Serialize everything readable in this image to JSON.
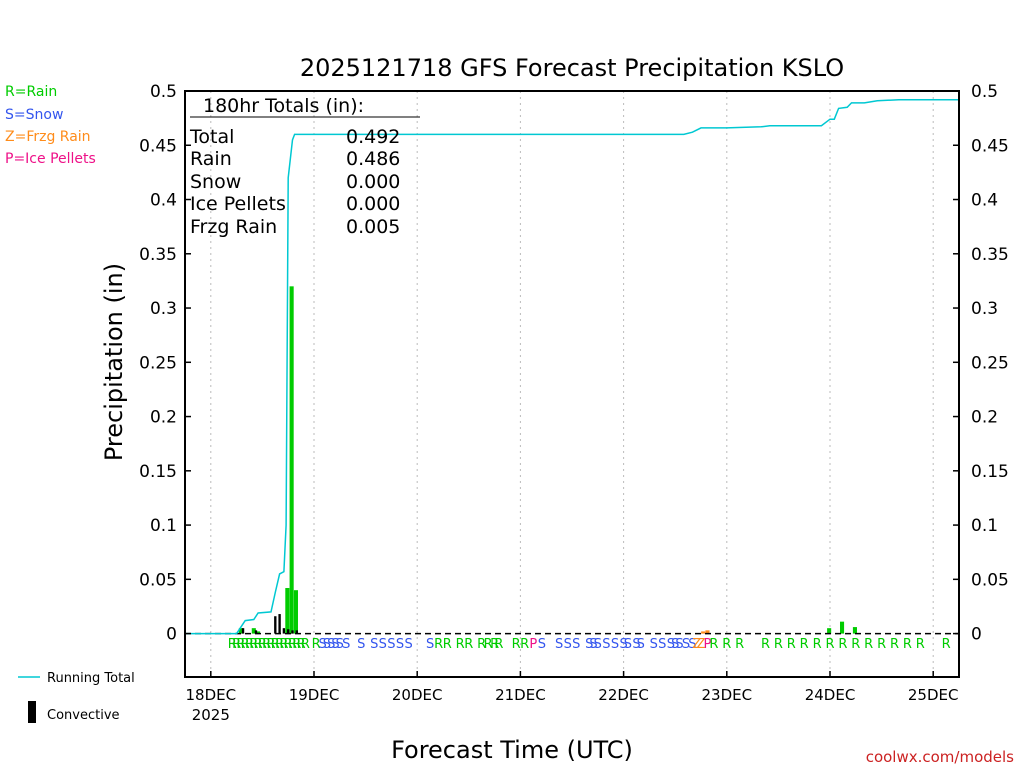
{
  "chart_data": {
    "type": "bar",
    "title": "2025121718 GFS Forecast Precipitation KSLO",
    "xlabel": "Forecast Time (UTC)",
    "ylabel": "Precipitation (in)",
    "ylim": [
      -0.04,
      0.5
    ],
    "y_ticks": [
      0,
      0.05,
      0.1,
      0.15,
      0.2,
      0.25,
      0.3,
      0.35,
      0.4,
      0.45,
      0.5
    ],
    "y_tick_labels": [
      "0",
      "0.05",
      "0.1",
      "0.15",
      "0.2",
      "0.25",
      "0.3",
      "0.35",
      "0.4",
      "0.45",
      "0.5"
    ],
    "x_unit": "hours since 18DEC 00Z",
    "xlim": [
      -6,
      174
    ],
    "x_ticks": [
      {
        "hour": 0,
        "label": "18DEC",
        "sub": "2025"
      },
      {
        "hour": 24,
        "label": "19DEC",
        "sub": ""
      },
      {
        "hour": 48,
        "label": "20DEC",
        "sub": ""
      },
      {
        "hour": 72,
        "label": "21DEC",
        "sub": ""
      },
      {
        "hour": 96,
        "label": "22DEC",
        "sub": ""
      },
      {
        "hour": 120,
        "label": "23DEC",
        "sub": ""
      },
      {
        "hour": 144,
        "label": "24DEC",
        "sub": ""
      },
      {
        "hour": 168,
        "label": "25DEC",
        "sub": ""
      }
    ],
    "legend_types": [
      {
        "code": "R",
        "text": "R=Rain",
        "color": "#00cc00"
      },
      {
        "code": "S",
        "text": "S=Snow",
        "color": "#3355ee"
      },
      {
        "code": "Z",
        "text": "Z=Frzg Rain",
        "color": "#ff8c1a"
      },
      {
        "code": "P",
        "text": "P=Ice Pellets",
        "color": "#ee1188"
      }
    ],
    "legend_lines": [
      {
        "text": "Running Total",
        "color": "#00c8d2"
      },
      {
        "text": "Convective",
        "color": "#000000"
      }
    ],
    "totals": {
      "header": "180hr Totals (in):",
      "rows": [
        {
          "label": "Total",
          "value": "0.492"
        },
        {
          "label": "Rain",
          "value": "0.486"
        },
        {
          "label": "Snow",
          "value": "0.000"
        },
        {
          "label": "Ice Pellets",
          "value": "0.000"
        },
        {
          "label": "Frzg Rain",
          "value": "0.005"
        }
      ]
    },
    "series": [
      {
        "name": "Precipitation (Rain)",
        "color": "#00cc00",
        "points": [
          [
            7,
            0.005
          ],
          [
            10,
            0.005
          ],
          [
            11,
            0.002
          ],
          [
            17.8,
            0.042
          ],
          [
            18.8,
            0.32
          ],
          [
            19.8,
            0.04
          ],
          [
            143.8,
            0.005
          ],
          [
            146.8,
            0.011
          ],
          [
            149.8,
            0.006
          ]
        ]
      },
      {
        "name": "Precipitation (Frzg Rain)",
        "color": "#ff8c1a",
        "points": [
          [
            114.5,
            0.002
          ],
          [
            115.5,
            0.003
          ]
        ]
      },
      {
        "name": "Convective",
        "color": "#000000",
        "points": [
          [
            7.5,
            0.005
          ],
          [
            10.5,
            0.003
          ],
          [
            15,
            0.016
          ],
          [
            16,
            0.018
          ],
          [
            17,
            0.005
          ],
          [
            18,
            0.004
          ],
          [
            19,
            0.003
          ],
          [
            20,
            0.003
          ]
        ]
      },
      {
        "name": "Running Total",
        "color": "#00c8d2",
        "type": "line",
        "points": [
          [
            -6,
            0
          ],
          [
            6,
            0
          ],
          [
            7,
            0.006
          ],
          [
            8,
            0.012
          ],
          [
            10,
            0.013
          ],
          [
            11,
            0.019
          ],
          [
            14,
            0.02
          ],
          [
            15,
            0.038
          ],
          [
            16,
            0.055
          ],
          [
            17,
            0.057
          ],
          [
            17.5,
            0.1
          ],
          [
            18,
            0.42
          ],
          [
            19,
            0.455
          ],
          [
            19.5,
            0.46
          ],
          [
            24,
            0.46
          ],
          [
            110,
            0.46
          ],
          [
            112,
            0.462
          ],
          [
            114,
            0.466
          ],
          [
            120,
            0.466
          ],
          [
            128,
            0.467
          ],
          [
            130,
            0.468
          ],
          [
            142,
            0.468
          ],
          [
            144,
            0.474
          ],
          [
            145,
            0.474
          ],
          [
            146,
            0.484
          ],
          [
            148,
            0.485
          ],
          [
            149,
            0.489
          ],
          [
            152,
            0.489
          ],
          [
            155,
            0.491
          ],
          [
            160,
            0.492
          ],
          [
            174,
            0.492
          ]
        ]
      }
    ],
    "type_markers": [
      {
        "hour": 5.0,
        "code": "R"
      },
      {
        "hour": 6.0,
        "code": "R"
      },
      {
        "hour": 7.0,
        "code": "R"
      },
      {
        "hour": 8.0,
        "code": "R"
      },
      {
        "hour": 9.0,
        "code": "R"
      },
      {
        "hour": 10.0,
        "code": "R"
      },
      {
        "hour": 11.0,
        "code": "R"
      },
      {
        "hour": 12.0,
        "code": "R"
      },
      {
        "hour": 13.0,
        "code": "R"
      },
      {
        "hour": 14.0,
        "code": "R"
      },
      {
        "hour": 15.0,
        "code": "R"
      },
      {
        "hour": 16.0,
        "code": "R"
      },
      {
        "hour": 17.0,
        "code": "R"
      },
      {
        "hour": 18.0,
        "code": "R"
      },
      {
        "hour": 19.0,
        "code": "R"
      },
      {
        "hour": 20.0,
        "code": "R"
      },
      {
        "hour": 21.0,
        "code": "R"
      },
      {
        "hour": 22.0,
        "code": "R"
      },
      {
        "hour": 24.5,
        "code": "R"
      },
      {
        "hour": 26.0,
        "code": "S"
      },
      {
        "hour": 27.0,
        "code": "S"
      },
      {
        "hour": 28.0,
        "code": "S"
      },
      {
        "hour": 29.0,
        "code": "S"
      },
      {
        "hour": 30.0,
        "code": "S"
      },
      {
        "hour": 31.5,
        "code": "S"
      },
      {
        "hour": 35.0,
        "code": "S"
      },
      {
        "hour": 38.0,
        "code": "S"
      },
      {
        "hour": 40.0,
        "code": "S"
      },
      {
        "hour": 42.0,
        "code": "S"
      },
      {
        "hour": 44.0,
        "code": "S"
      },
      {
        "hour": 46.0,
        "code": "S"
      },
      {
        "hour": 51.0,
        "code": "S"
      },
      {
        "hour": 53.0,
        "code": "R"
      },
      {
        "hour": 55.0,
        "code": "R"
      },
      {
        "hour": 58.0,
        "code": "R"
      },
      {
        "hour": 60.0,
        "code": "R"
      },
      {
        "hour": 63.0,
        "code": "R"
      },
      {
        "hour": 64.5,
        "code": "R"
      },
      {
        "hour": 66.0,
        "code": "R"
      },
      {
        "hour": 67.0,
        "code": "R"
      },
      {
        "hour": 71.0,
        "code": "R"
      },
      {
        "hour": 73.0,
        "code": "R"
      },
      {
        "hour": 75.0,
        "code": "P"
      },
      {
        "hour": 77.0,
        "code": "S"
      },
      {
        "hour": 81.0,
        "code": "S"
      },
      {
        "hour": 83.0,
        "code": "S"
      },
      {
        "hour": 85.0,
        "code": "S"
      },
      {
        "hour": 88.0,
        "code": "S"
      },
      {
        "hour": 89.0,
        "code": "S"
      },
      {
        "hour": 90.0,
        "code": "S"
      },
      {
        "hour": 92.0,
        "code": "S"
      },
      {
        "hour": 94.0,
        "code": "S"
      },
      {
        "hour": 96.0,
        "code": "S"
      },
      {
        "hour": 97.0,
        "code": "S"
      },
      {
        "hour": 99.0,
        "code": "S"
      },
      {
        "hour": 100.0,
        "code": "S"
      },
      {
        "hour": 103.0,
        "code": "S"
      },
      {
        "hour": 105.0,
        "code": "S"
      },
      {
        "hour": 107.0,
        "code": "S"
      },
      {
        "hour": 108.0,
        "code": "S"
      },
      {
        "hour": 109.0,
        "code": "S"
      },
      {
        "hour": 110.5,
        "code": "S"
      },
      {
        "hour": 112.0,
        "code": "S"
      },
      {
        "hour": 113.0,
        "code": "Z"
      },
      {
        "hour": 114.0,
        "code": "Z"
      },
      {
        "hour": 115.5,
        "code": "P"
      },
      {
        "hour": 117.0,
        "code": "R"
      },
      {
        "hour": 120.0,
        "code": "R"
      },
      {
        "hour": 123.0,
        "code": "R"
      },
      {
        "hour": 129.0,
        "code": "R"
      },
      {
        "hour": 132.0,
        "code": "R"
      },
      {
        "hour": 135.0,
        "code": "R"
      },
      {
        "hour": 138.0,
        "code": "R"
      },
      {
        "hour": 141.0,
        "code": "R"
      },
      {
        "hour": 144.0,
        "code": "R"
      },
      {
        "hour": 147.0,
        "code": "R"
      },
      {
        "hour": 150.0,
        "code": "R"
      },
      {
        "hour": 153.0,
        "code": "R"
      },
      {
        "hour": 156.0,
        "code": "R"
      },
      {
        "hour": 159.0,
        "code": "R"
      },
      {
        "hour": 162.0,
        "code": "R"
      },
      {
        "hour": 165.0,
        "code": "R"
      },
      {
        "hour": 171.0,
        "code": "R"
      }
    ],
    "watermark": "coolwx.com/models"
  }
}
